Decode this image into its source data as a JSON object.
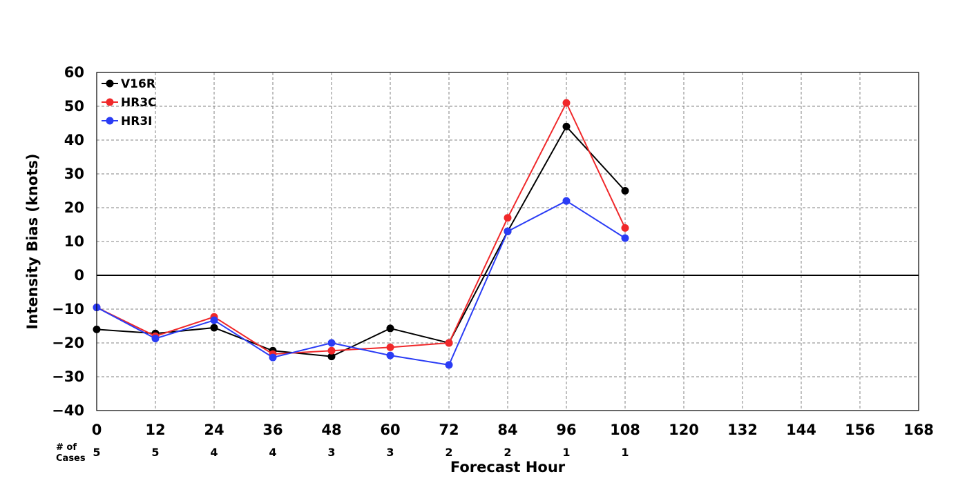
{
  "chart_data": {
    "type": "line",
    "title": "",
    "xlabel": "Forecast Hour",
    "ylabel": "Intensity Bias (knots)",
    "xlim": [
      0,
      168
    ],
    "ylim": [
      -40,
      60
    ],
    "x_ticks": [
      0,
      12,
      24,
      36,
      48,
      60,
      72,
      84,
      96,
      108,
      120,
      132,
      144,
      156,
      168
    ],
    "y_ticks": [
      60,
      50,
      40,
      30,
      20,
      10,
      0,
      -10,
      -20,
      -30,
      -40
    ],
    "y_tick_labels": [
      "60",
      "50",
      "40",
      "30",
      "20",
      "10",
      "0",
      "−10",
      "−20",
      "−30",
      "−40"
    ],
    "grid": true,
    "legend": "top-left",
    "zero_line": true,
    "cases_label": [
      "# of",
      "Cases"
    ],
    "cases": [
      {
        "x": 0,
        "n": "5"
      },
      {
        "x": 12,
        "n": "5"
      },
      {
        "x": 24,
        "n": "4"
      },
      {
        "x": 36,
        "n": "4"
      },
      {
        "x": 48,
        "n": "3"
      },
      {
        "x": 60,
        "n": "3"
      },
      {
        "x": 72,
        "n": "2"
      },
      {
        "x": 84,
        "n": "2"
      },
      {
        "x": 96,
        "n": "1"
      },
      {
        "x": 108,
        "n": "1"
      }
    ],
    "series": [
      {
        "name": "V16R",
        "color": "#000000",
        "x": [
          0,
          12,
          24,
          36,
          48,
          60,
          72,
          84,
          96,
          108
        ],
        "values": [
          -16,
          -17.2,
          -15.5,
          -22.3,
          -24,
          -15.7,
          -20,
          13,
          44,
          25
        ]
      },
      {
        "name": "HR3C",
        "color": "#f0282a",
        "x": [
          0,
          12,
          24,
          36,
          48,
          60,
          72,
          84,
          96,
          108
        ],
        "values": [
          -9.5,
          -18,
          -12.3,
          -23.3,
          -22.3,
          -21.3,
          -20,
          17,
          51,
          14
        ]
      },
      {
        "name": "HR3I",
        "color": "#2a3cf5",
        "x": [
          0,
          12,
          24,
          36,
          48,
          60,
          72,
          84,
          96,
          108
        ],
        "values": [
          -9.5,
          -18.7,
          -13.3,
          -24.3,
          -20,
          -23.7,
          -26.5,
          13,
          22,
          11
        ]
      }
    ]
  }
}
